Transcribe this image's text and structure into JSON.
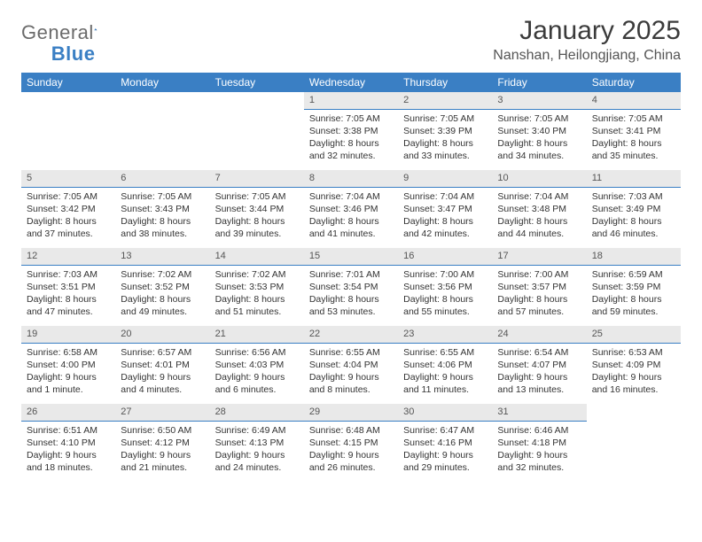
{
  "logo": {
    "text1": "General",
    "text2": "Blue"
  },
  "title": "January 2025",
  "location": "Nanshan, Heilongjiang, China",
  "colors": {
    "header_bg": "#3a7fc4",
    "header_text": "#ffffff",
    "band_bg": "#e9e9e9",
    "band_border": "#3a7fc4",
    "body_text": "#333333"
  },
  "typography": {
    "title_fontsize": 30,
    "location_fontsize": 16,
    "dayhead_fontsize": 12,
    "cell_fontsize": 10.5
  },
  "layout": {
    "columns": 7,
    "rows": 5
  },
  "dayHeaders": [
    "Sunday",
    "Monday",
    "Tuesday",
    "Wednesday",
    "Thursday",
    "Friday",
    "Saturday"
  ],
  "weeks": [
    [
      null,
      null,
      null,
      {
        "num": "1",
        "sunrise": "7:05 AM",
        "sunset": "3:38 PM",
        "daylight": "8 hours and 32 minutes."
      },
      {
        "num": "2",
        "sunrise": "7:05 AM",
        "sunset": "3:39 PM",
        "daylight": "8 hours and 33 minutes."
      },
      {
        "num": "3",
        "sunrise": "7:05 AM",
        "sunset": "3:40 PM",
        "daylight": "8 hours and 34 minutes."
      },
      {
        "num": "4",
        "sunrise": "7:05 AM",
        "sunset": "3:41 PM",
        "daylight": "8 hours and 35 minutes."
      }
    ],
    [
      {
        "num": "5",
        "sunrise": "7:05 AM",
        "sunset": "3:42 PM",
        "daylight": "8 hours and 37 minutes."
      },
      {
        "num": "6",
        "sunrise": "7:05 AM",
        "sunset": "3:43 PM",
        "daylight": "8 hours and 38 minutes."
      },
      {
        "num": "7",
        "sunrise": "7:05 AM",
        "sunset": "3:44 PM",
        "daylight": "8 hours and 39 minutes."
      },
      {
        "num": "8",
        "sunrise": "7:04 AM",
        "sunset": "3:46 PM",
        "daylight": "8 hours and 41 minutes."
      },
      {
        "num": "9",
        "sunrise": "7:04 AM",
        "sunset": "3:47 PM",
        "daylight": "8 hours and 42 minutes."
      },
      {
        "num": "10",
        "sunrise": "7:04 AM",
        "sunset": "3:48 PM",
        "daylight": "8 hours and 44 minutes."
      },
      {
        "num": "11",
        "sunrise": "7:03 AM",
        "sunset": "3:49 PM",
        "daylight": "8 hours and 46 minutes."
      }
    ],
    [
      {
        "num": "12",
        "sunrise": "7:03 AM",
        "sunset": "3:51 PM",
        "daylight": "8 hours and 47 minutes."
      },
      {
        "num": "13",
        "sunrise": "7:02 AM",
        "sunset": "3:52 PM",
        "daylight": "8 hours and 49 minutes."
      },
      {
        "num": "14",
        "sunrise": "7:02 AM",
        "sunset": "3:53 PM",
        "daylight": "8 hours and 51 minutes."
      },
      {
        "num": "15",
        "sunrise": "7:01 AM",
        "sunset": "3:54 PM",
        "daylight": "8 hours and 53 minutes."
      },
      {
        "num": "16",
        "sunrise": "7:00 AM",
        "sunset": "3:56 PM",
        "daylight": "8 hours and 55 minutes."
      },
      {
        "num": "17",
        "sunrise": "7:00 AM",
        "sunset": "3:57 PM",
        "daylight": "8 hours and 57 minutes."
      },
      {
        "num": "18",
        "sunrise": "6:59 AM",
        "sunset": "3:59 PM",
        "daylight": "8 hours and 59 minutes."
      }
    ],
    [
      {
        "num": "19",
        "sunrise": "6:58 AM",
        "sunset": "4:00 PM",
        "daylight": "9 hours and 1 minute."
      },
      {
        "num": "20",
        "sunrise": "6:57 AM",
        "sunset": "4:01 PM",
        "daylight": "9 hours and 4 minutes."
      },
      {
        "num": "21",
        "sunrise": "6:56 AM",
        "sunset": "4:03 PM",
        "daylight": "9 hours and 6 minutes."
      },
      {
        "num": "22",
        "sunrise": "6:55 AM",
        "sunset": "4:04 PM",
        "daylight": "9 hours and 8 minutes."
      },
      {
        "num": "23",
        "sunrise": "6:55 AM",
        "sunset": "4:06 PM",
        "daylight": "9 hours and 11 minutes."
      },
      {
        "num": "24",
        "sunrise": "6:54 AM",
        "sunset": "4:07 PM",
        "daylight": "9 hours and 13 minutes."
      },
      {
        "num": "25",
        "sunrise": "6:53 AM",
        "sunset": "4:09 PM",
        "daylight": "9 hours and 16 minutes."
      }
    ],
    [
      {
        "num": "26",
        "sunrise": "6:51 AM",
        "sunset": "4:10 PM",
        "daylight": "9 hours and 18 minutes."
      },
      {
        "num": "27",
        "sunrise": "6:50 AM",
        "sunset": "4:12 PM",
        "daylight": "9 hours and 21 minutes."
      },
      {
        "num": "28",
        "sunrise": "6:49 AM",
        "sunset": "4:13 PM",
        "daylight": "9 hours and 24 minutes."
      },
      {
        "num": "29",
        "sunrise": "6:48 AM",
        "sunset": "4:15 PM",
        "daylight": "9 hours and 26 minutes."
      },
      {
        "num": "30",
        "sunrise": "6:47 AM",
        "sunset": "4:16 PM",
        "daylight": "9 hours and 29 minutes."
      },
      {
        "num": "31",
        "sunrise": "6:46 AM",
        "sunset": "4:18 PM",
        "daylight": "9 hours and 32 minutes."
      },
      null
    ]
  ],
  "labels": {
    "sunrise_prefix": "Sunrise: ",
    "sunset_prefix": "Sunset: ",
    "daylight_prefix": "Daylight: "
  }
}
